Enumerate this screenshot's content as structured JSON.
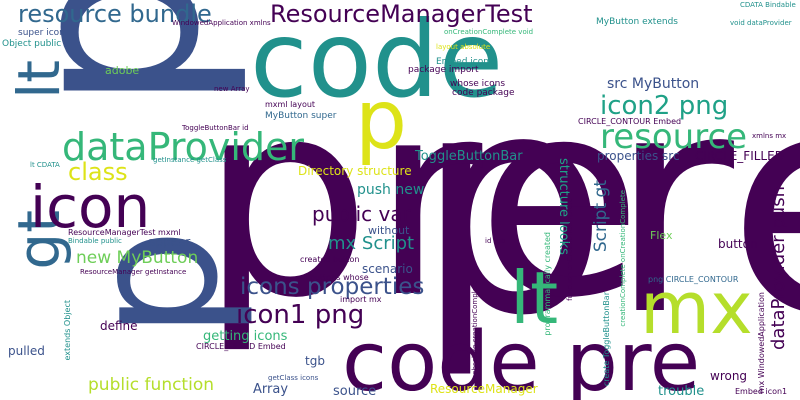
{
  "colors": {
    "dark_purple": "#440154",
    "indigo": "#3b528b",
    "blue": "#31688e",
    "teal": "#21918c",
    "green_teal": "#1fa187",
    "green": "#35b779",
    "light_green": "#6ece58",
    "yellow_green": "#b5de2b",
    "yellow": "#dde318"
  },
  "words": [
    "p",
    "pre",
    "code",
    "pre",
    "p",
    "code pre",
    "lt",
    "mx",
    "gt",
    "lt",
    "icon",
    "dataProvider",
    "resource",
    "class",
    "resource bundle",
    "ResourceManagerTest",
    "icon2 png",
    "icon1 png",
    "icons properties",
    "public var",
    "mx Script",
    "new MyButton",
    "public function",
    "dataProvider push",
    "Script gt",
    "structure looks",
    "ToggleButtonBar",
    "properties src",
    "CIRCLE_FILLED",
    "button",
    "src MyButton",
    "push new",
    "Directory structure",
    "getting icons",
    "define",
    "wrong",
    "trouble",
    "source",
    "Array",
    "ResourceManager",
    "pulled",
    "Flex",
    "appear",
    "tgb",
    "scenario",
    "without",
    "adobe",
    "super icon",
    "Object public",
    "package import",
    "whose icons",
    "code package",
    "Embed icon2",
    "MyButton extends",
    "CIRCLE_CONTOUR Embed",
    "MyButton super",
    "mxml layout",
    "ResourceManagerTest mxml",
    "Bindable public",
    "ResourceManager getInstance",
    "created button",
    "buttons whose",
    "import mx",
    "CIRCLE_FILLED Embed",
    "getClass icons",
    "Embed icon1",
    "png CIRCLE_CONTOUR",
    "xmlns mx",
    "CDATA Bindable",
    "void dataProvider",
    "WindowedApplication xmlns",
    "onCreationComplete void",
    "layout absolute",
    "new Array",
    "ToggleButtonBar id",
    "getInstance getClass",
    "lt CDATA",
    "id tgb",
    "extends Object",
    "mx WindowedApplication",
    "programmatically created",
    "create ToggleButtonBar",
    "function onCreationComplete",
    "creationComplete onCreationComplete",
    "absolute creationComplete"
  ]
}
